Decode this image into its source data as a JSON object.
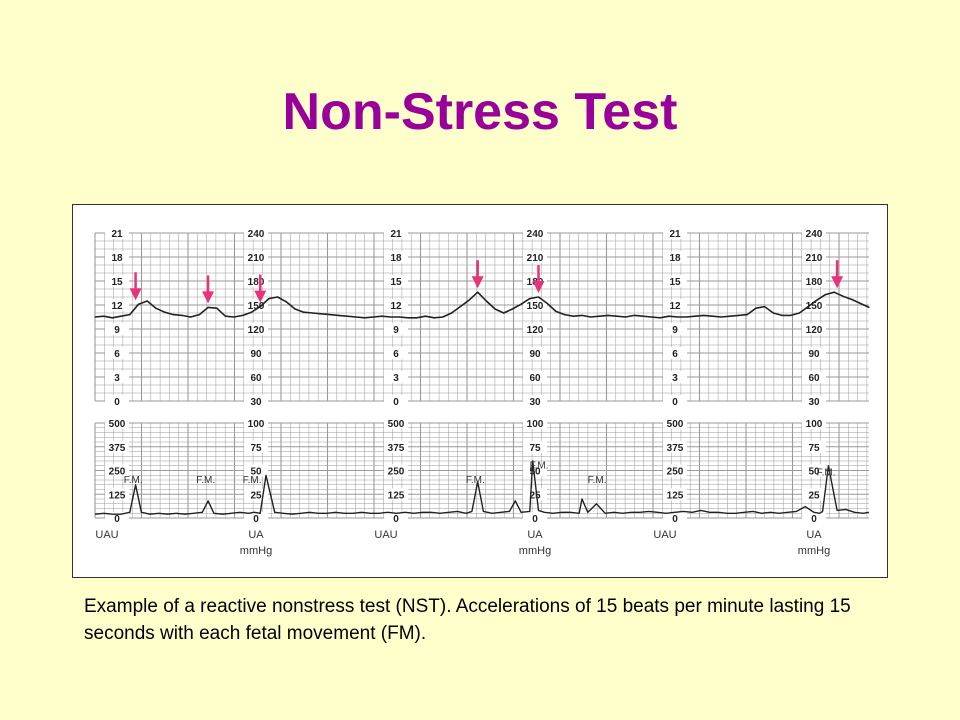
{
  "slide": {
    "title": "Non-Stress Test",
    "caption": "Example of a reactive nonstress test (NST). Accelerations of 15 beats per minute lasting 15 seconds with each fetal movement (FM).",
    "colors": {
      "background": "#ffffcc",
      "title": "#990099",
      "arrow": "#e8327a",
      "trace": "#222222",
      "grid": "#9a9a9a"
    }
  },
  "chart_data": [
    {
      "type": "line",
      "panel": "fetal heart rate",
      "axis_scales": [
        {
          "ticks": [
            "21",
            "18",
            "15",
            "12",
            "9",
            "6",
            "3",
            "0"
          ]
        },
        {
          "ticks": [
            "240",
            "210",
            "180",
            "150",
            "120",
            "90",
            "60",
            "30"
          ]
        }
      ],
      "ylim": [
        30,
        240
      ],
      "x": [
        0,
        3,
        6,
        9,
        12,
        15,
        18,
        21,
        24,
        27,
        30,
        33,
        36,
        39,
        42,
        45,
        48,
        51,
        54,
        57,
        60,
        63,
        66,
        69,
        72,
        75,
        78,
        81,
        84,
        87,
        90,
        93,
        96,
        99,
        102,
        105,
        108,
        111,
        114,
        117,
        120,
        123,
        126,
        129,
        132,
        135,
        138,
        141,
        144,
        147,
        150,
        153,
        156,
        159,
        162,
        165,
        168,
        171,
        174,
        177,
        180,
        183,
        186,
        189,
        192,
        195,
        198,
        201,
        204,
        207,
        210,
        213,
        216,
        219,
        222,
        225,
        228,
        231,
        234,
        237,
        240,
        243,
        246,
        249,
        252,
        255,
        258,
        261,
        264,
        267
      ],
      "values": [
        135,
        136,
        134,
        136,
        138,
        151,
        155,
        146,
        141,
        138,
        137,
        135,
        138,
        147,
        146,
        136,
        135,
        137,
        141,
        148,
        158,
        160,
        154,
        145,
        141,
        140,
        139,
        138,
        137,
        136,
        135,
        134,
        135,
        136,
        135,
        135,
        134,
        134,
        136,
        134,
        135,
        140,
        148,
        156,
        166,
        155,
        145,
        140,
        145,
        151,
        158,
        160,
        152,
        142,
        138,
        136,
        137,
        135,
        136,
        137,
        136,
        135,
        137,
        136,
        135,
        134,
        136,
        135,
        135,
        136,
        137,
        136,
        135,
        136,
        137,
        138,
        146,
        148,
        140,
        137,
        137,
        140,
        148,
        156,
        163,
        166,
        161,
        157,
        152,
        147
      ],
      "fm_arrows": [
        14,
        39,
        57,
        132,
        153,
        256
      ]
    },
    {
      "type": "line",
      "panel": "uterine activity",
      "axis_scales": [
        {
          "ticks": [
            "500",
            "375",
            "250",
            "125",
            "0"
          ]
        },
        {
          "ticks": [
            "100",
            "75",
            "50",
            "25",
            "0"
          ]
        }
      ],
      "bottom_labels": [
        "UAU",
        "UA",
        "mmHg",
        "UAU",
        "UA",
        "mmHg",
        "UAU",
        "UA",
        "mmHg"
      ],
      "ylim": [
        0,
        100
      ],
      "x": [
        0,
        3,
        6,
        9,
        12,
        14,
        16,
        19,
        22,
        25,
        28,
        31,
        34,
        37,
        39,
        41,
        44,
        47,
        50,
        53,
        55,
        57,
        59,
        62,
        65,
        68,
        71,
        74,
        77,
        80,
        83,
        86,
        89,
        92,
        95,
        98,
        101,
        104,
        107,
        110,
        113,
        116,
        119,
        122,
        125,
        128,
        130,
        132,
        134,
        137,
        140,
        143,
        145,
        147,
        150,
        151,
        153,
        155,
        158,
        161,
        164,
        167,
        168,
        170,
        173,
        176,
        179,
        182,
        185,
        188,
        191,
        194,
        197,
        200,
        203,
        206,
        209,
        212,
        215,
        218,
        221,
        224,
        227,
        230,
        233,
        236,
        239,
        242,
        245,
        248,
        250,
        251,
        253,
        256,
        259,
        262,
        265,
        267
      ],
      "values": [
        4,
        5,
        4,
        4,
        6,
        35,
        6,
        4,
        5,
        4,
        5,
        4,
        5,
        6,
        18,
        5,
        4,
        5,
        6,
        5,
        6,
        5,
        45,
        6,
        5,
        4,
        5,
        6,
        5,
        5,
        6,
        5,
        5,
        6,
        5,
        5,
        6,
        5,
        6,
        5,
        6,
        6,
        5,
        6,
        7,
        5,
        7,
        38,
        7,
        5,
        6,
        7,
        18,
        6,
        7,
        60,
        8,
        6,
        5,
        6,
        6,
        5,
        20,
        6,
        15,
        5,
        6,
        5,
        6,
        6,
        7,
        6,
        5,
        6,
        7,
        6,
        8,
        6,
        6,
        5,
        5,
        6,
        7,
        5,
        6,
        5,
        6,
        7,
        12,
        6,
        5,
        7,
        55,
        8,
        9,
        6,
        5,
        6
      ],
      "fm_labels": [
        {
          "x": 12,
          "text": "F.M."
        },
        {
          "x": 37,
          "text": "F.M."
        },
        {
          "x": 53,
          "text": "F.M."
        },
        {
          "x": 130,
          "text": "F.M."
        },
        {
          "x": 152,
          "text": "F.M."
        },
        {
          "x": 172,
          "text": "F.M."
        },
        {
          "x": 251,
          "text": "F.M."
        }
      ]
    }
  ]
}
